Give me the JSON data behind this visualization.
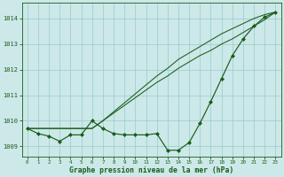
{
  "xlabel": "Graphe pression niveau de la mer (hPa)",
  "background_color": "#cce8e8",
  "grid_color": "#99cccc",
  "line_color": "#1a5c1a",
  "hours": [
    0,
    1,
    2,
    3,
    4,
    5,
    6,
    7,
    8,
    9,
    10,
    11,
    12,
    13,
    14,
    15,
    16,
    17,
    18,
    19,
    20,
    21,
    22,
    23
  ],
  "series_main": [
    1009.7,
    1009.5,
    1009.4,
    1009.2,
    1009.45,
    1009.45,
    1010.0,
    1009.7,
    1009.5,
    1009.45,
    1009.45,
    1009.45,
    1009.5,
    1008.85,
    1008.85,
    1009.15,
    1009.9,
    1010.75,
    1011.65,
    1012.55,
    1013.2,
    1013.7,
    1014.05,
    1014.25
  ],
  "series_line2": [
    1009.7,
    1009.7,
    1009.7,
    1009.7,
    1009.7,
    1009.7,
    1009.7,
    1010.0,
    1010.35,
    1010.7,
    1011.05,
    1011.4,
    1011.75,
    1012.05,
    1012.4,
    1012.65,
    1012.9,
    1013.15,
    1013.4,
    1013.6,
    1013.8,
    1014.0,
    1014.15,
    1014.25
  ],
  "series_line3": [
    1009.7,
    1009.7,
    1009.7,
    1009.7,
    1009.7,
    1009.7,
    1009.7,
    1010.0,
    1010.3,
    1010.6,
    1010.9,
    1011.2,
    1011.5,
    1011.75,
    1012.05,
    1012.3,
    1012.55,
    1012.75,
    1013.0,
    1013.2,
    1013.45,
    1013.7,
    1013.95,
    1014.25
  ],
  "ylim": [
    1008.6,
    1014.6
  ],
  "yticks": [
    1009,
    1010,
    1011,
    1012,
    1013,
    1014
  ],
  "xlim": [
    -0.5,
    23.5
  ],
  "figsize": [
    3.2,
    2.0
  ],
  "dpi": 100
}
